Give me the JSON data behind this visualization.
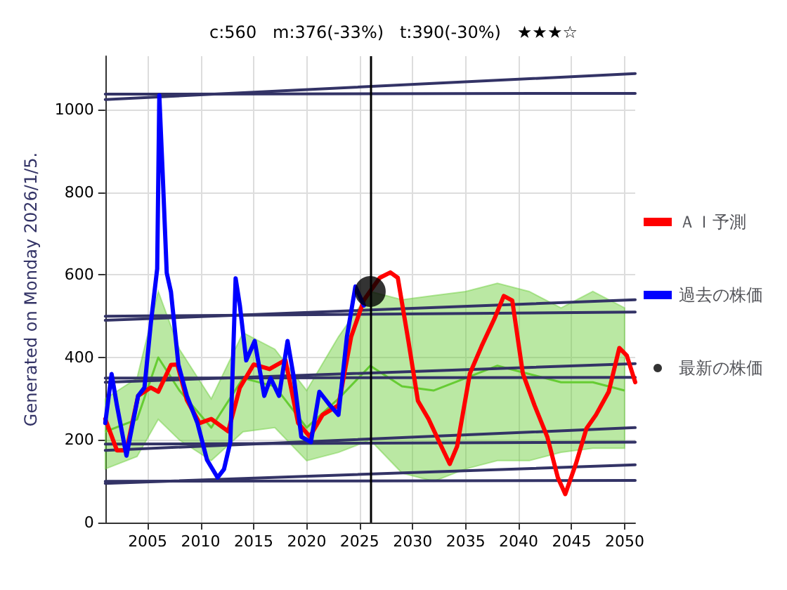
{
  "chart_data": {
    "type": "line",
    "title": "c:560   m:376(-33%)   t:390(-30%)   ★★★☆",
    "ylabel": "Generated on Monday 2026/1/5.",
    "xlim": [
      2001,
      2051
    ],
    "xticks": [
      2005,
      2010,
      2015,
      2020,
      2025,
      2030,
      2035,
      2040,
      2045,
      2050
    ],
    "ylim": [
      0,
      1130
    ],
    "yticks": [
      0,
      200,
      400,
      600,
      800,
      1000
    ],
    "grid": true,
    "legend": "right",
    "marker": "none",
    "line_style": "solid",
    "ref_lines": [
      {
        "axis": "x",
        "value": 2026,
        "color": "#000000"
      }
    ],
    "series": [
      {
        "color": "#66cc33",
        "x": [
          2001,
          2004,
          2006,
          2008,
          2011,
          2014,
          2017,
          2020,
          2023,
          2026,
          2029,
          2032,
          2035,
          2038,
          2041,
          2044,
          2047,
          2050
        ],
        "values": [
          220,
          250,
          400,
          320,
          230,
          350,
          330,
          230,
          300,
          380,
          330,
          320,
          350,
          380,
          360,
          340,
          340,
          320
        ],
        "lower": [
          130,
          160,
          250,
          200,
          150,
          220,
          230,
          150,
          170,
          200,
          120,
          100,
          130,
          150,
          150,
          170,
          180,
          180
        ],
        "upper": [
          300,
          350,
          560,
          420,
          300,
          460,
          420,
          320,
          450,
          560,
          540,
          550,
          560,
          580,
          560,
          520,
          560,
          520
        ]
      },
      {
        "color": "#333366",
        "x": [
          2001,
          2051
        ],
        "values": [
          1025,
          1088
        ]
      },
      {
        "color": "#333366",
        "x": [
          2001,
          2051
        ],
        "values": [
          1038,
          1040
        ]
      },
      {
        "color": "#333366",
        "x": [
          2001,
          2051
        ],
        "values": [
          490,
          540
        ]
      },
      {
        "color": "#333366",
        "x": [
          2001,
          2051
        ],
        "values": [
          500,
          510
        ]
      },
      {
        "color": "#333366",
        "x": [
          2001,
          2051
        ],
        "values": [
          340,
          385
        ]
      },
      {
        "color": "#333366",
        "x": [
          2001,
          2051
        ],
        "values": [
          350,
          352
        ]
      },
      {
        "color": "#333366",
        "x": [
          2001,
          2051
        ],
        "values": [
          175,
          230
        ]
      },
      {
        "color": "#333366",
        "x": [
          2001,
          2051
        ],
        "values": [
          190,
          195
        ]
      },
      {
        "color": "#333366",
        "x": [
          2001,
          2051
        ],
        "values": [
          95,
          140
        ]
      },
      {
        "color": "#333366",
        "x": [
          2001,
          2051
        ],
        "values": [
          100,
          102
        ]
      },
      {
        "name": "ＡＩ予測",
        "color": "#ff0000",
        "x": [
          2001,
          2002.1,
          2003,
          2004.1,
          2005.3,
          2006,
          2007.2,
          2007.8,
          2008.7,
          2009.9,
          2011,
          2012.6,
          2013.7,
          2015,
          2016.5,
          2018,
          2019.2,
          2020.3,
          2021.5,
          2023,
          2024.2,
          2025.4,
          2026.9,
          2027.9,
          2028.6,
          2029.6,
          2030.5,
          2031.5,
          2032.7,
          2033.5,
          2034.2,
          2035.4,
          2036.5,
          2037.7,
          2038.6,
          2039.4,
          2040.4,
          2041.5,
          2042.7,
          2043.7,
          2044.4,
          2045.4,
          2046.4,
          2047.3,
          2048.5,
          2049.5,
          2050.2,
          2051
        ],
        "values": [
          251,
          175,
          175,
          307,
          327,
          317,
          382,
          383,
          297,
          241,
          251,
          221,
          327,
          383,
          372,
          394,
          241,
          208,
          261,
          284,
          450,
          539,
          593,
          606,
          593,
          440,
          295,
          251,
          185,
          142,
          185,
          361,
          427,
          493,
          549,
          538,
          361,
          284,
          208,
          109,
          69,
          142,
          228,
          261,
          317,
          423,
          405,
          340
        ]
      },
      {
        "name": "過去の株価",
        "color": "#0000ff",
        "x": [
          2001,
          2001.6,
          2002.1,
          2003,
          2004.1,
          2004.7,
          2005.3,
          2005.9,
          2006.1,
          2006.4,
          2006.8,
          2007.2,
          2007.9,
          2008.7,
          2009.7,
          2010.6,
          2011.6,
          2012.2,
          2012.8,
          2013.3,
          2013.7,
          2014.3,
          2015.1,
          2016,
          2016.6,
          2017.4,
          2018.2,
          2018.8,
          2019.5,
          2020.4,
          2021.2,
          2022.2,
          2023,
          2023.8,
          2024.6,
          2025.4
        ],
        "values": [
          241,
          360,
          284,
          162,
          307,
          327,
          483,
          615,
          1035,
          856,
          605,
          559,
          383,
          307,
          241,
          152,
          109,
          129,
          195,
          592,
          526,
          393,
          440,
          307,
          350,
          307,
          440,
          350,
          208,
          195,
          317,
          284,
          261,
          450,
          572,
          526
        ]
      },
      {
        "name": "最新の株価",
        "type": "scatter",
        "marker": "circle",
        "color": "#000000",
        "x": [
          2026
        ],
        "values": [
          560
        ]
      }
    ]
  }
}
